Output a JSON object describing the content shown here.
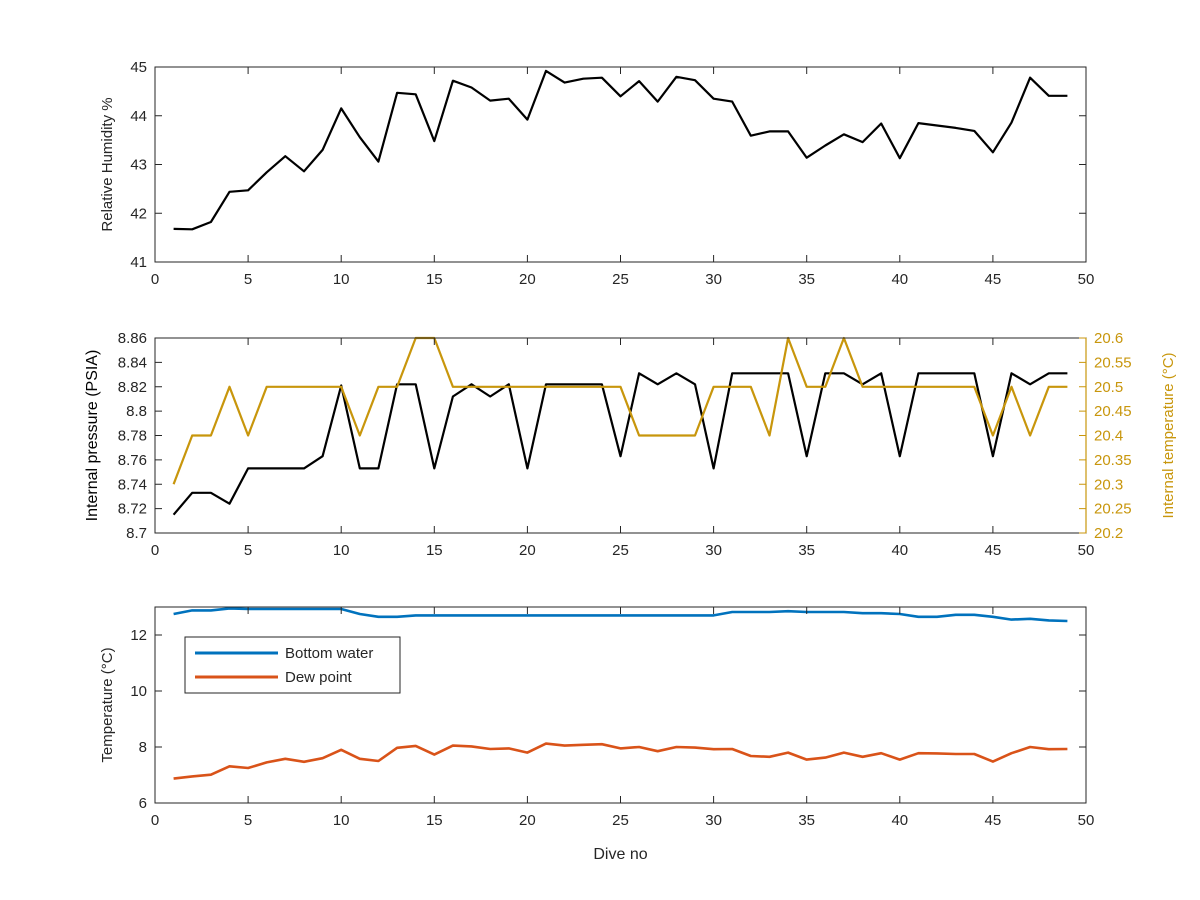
{
  "chart_data": [
    {
      "type": "line",
      "xlabel": "",
      "ylabel": "Relative Humidity %",
      "xlim": [
        0,
        50
      ],
      "ylim": [
        41,
        45
      ],
      "xticks": [
        0,
        5,
        10,
        15,
        20,
        25,
        30,
        35,
        40,
        45,
        50
      ],
      "yticks": [
        41,
        42,
        43,
        44,
        45
      ],
      "xtick_labels": [
        "0",
        "5",
        "10",
        "15",
        "20",
        "25",
        "30",
        "35",
        "40",
        "45",
        "50"
      ],
      "ytick_labels": [
        "41",
        "42",
        "43",
        "44",
        "45"
      ],
      "grid": false,
      "series": [
        {
          "color": "#000000",
          "x": [
            1,
            2,
            3,
            4,
            5,
            6,
            7,
            8,
            9,
            10,
            11,
            12,
            13,
            14,
            15,
            16,
            17,
            18,
            19,
            20,
            21,
            22,
            23,
            24,
            25,
            26,
            27,
            28,
            29,
            30,
            31,
            32,
            33,
            34,
            35,
            36,
            37,
            38,
            39,
            40,
            41,
            42,
            43,
            44,
            45,
            46,
            47,
            48,
            49
          ],
          "values": [
            41.68,
            41.67,
            41.82,
            42.44,
            42.47,
            42.84,
            43.17,
            42.86,
            43.3,
            44.15,
            43.56,
            43.06,
            44.47,
            44.44,
            43.48,
            44.72,
            44.58,
            44.31,
            44.35,
            43.92,
            44.92,
            44.68,
            44.76,
            44.78,
            44.4,
            44.71,
            44.29,
            44.8,
            44.73,
            44.35,
            44.29,
            43.59,
            43.68,
            43.68,
            43.14,
            43.39,
            43.62,
            43.46,
            43.84,
            43.13,
            43.85,
            43.8,
            43.75,
            43.69,
            43.25,
            43.86,
            44.78,
            44.41,
            44.41
          ]
        }
      ]
    },
    {
      "type": "line",
      "xlabel": "",
      "ylabel": "Internal pressure (PSIA)",
      "ylabel_right": "Internal temperature (°C)",
      "xlim": [
        0,
        50
      ],
      "ylim": [
        8.7,
        8.86
      ],
      "ylim_right": [
        20.2,
        20.6
      ],
      "xticks": [
        0,
        5,
        10,
        15,
        20,
        25,
        30,
        35,
        40,
        45,
        50
      ],
      "yticks": [
        8.7,
        8.72,
        8.74,
        8.76,
        8.78,
        8.8,
        8.82,
        8.84,
        8.86
      ],
      "yticks_right": [
        20.2,
        20.25,
        20.3,
        20.35,
        20.4,
        20.45,
        20.5,
        20.55,
        20.6
      ],
      "xtick_labels": [
        "0",
        "5",
        "10",
        "15",
        "20",
        "25",
        "30",
        "35",
        "40",
        "45",
        "50"
      ],
      "ytick_labels": [
        "8.7",
        "8.72",
        "8.74",
        "8.76",
        "8.78",
        "8.8",
        "8.82",
        "8.84",
        "8.86"
      ],
      "ytick_labels_right": [
        "20.2",
        "20.25",
        "20.3",
        "20.35",
        "20.4",
        "20.45",
        "20.5",
        "20.55",
        "20.6"
      ],
      "right_axis_color": "#c8960c",
      "grid": false,
      "series": [
        {
          "axis": "left",
          "color": "#000000",
          "x": [
            1,
            2,
            3,
            4,
            5,
            6,
            7,
            8,
            9,
            10,
            11,
            12,
            13,
            14,
            15,
            16,
            17,
            18,
            19,
            20,
            21,
            22,
            23,
            24,
            25,
            26,
            27,
            28,
            29,
            30,
            31,
            32,
            33,
            34,
            35,
            36,
            37,
            38,
            39,
            40,
            41,
            42,
            43,
            44,
            45,
            46,
            47,
            48,
            49
          ],
          "values": [
            8.715,
            8.733,
            8.733,
            8.724,
            8.753,
            8.753,
            8.753,
            8.753,
            8.763,
            8.821,
            8.753,
            8.753,
            8.822,
            8.822,
            8.753,
            8.812,
            8.822,
            8.812,
            8.822,
            8.753,
            8.822,
            8.822,
            8.822,
            8.822,
            8.763,
            8.831,
            8.822,
            8.831,
            8.822,
            8.753,
            8.831,
            8.831,
            8.831,
            8.831,
            8.763,
            8.831,
            8.831,
            8.822,
            8.831,
            8.763,
            8.831,
            8.831,
            8.831,
            8.831,
            8.763,
            8.831,
            8.822,
            8.831,
            8.831
          ]
        },
        {
          "axis": "right",
          "color": "#c8960c",
          "x": [
            1,
            2,
            3,
            4,
            5,
            6,
            7,
            8,
            9,
            10,
            11,
            12,
            13,
            14,
            15,
            16,
            17,
            18,
            19,
            20,
            21,
            22,
            23,
            24,
            25,
            26,
            27,
            28,
            29,
            30,
            31,
            32,
            33,
            34,
            35,
            36,
            37,
            38,
            39,
            40,
            41,
            42,
            43,
            44,
            45,
            46,
            47,
            48,
            49
          ],
          "values": [
            20.3,
            20.4,
            20.4,
            20.5,
            20.4,
            20.5,
            20.5,
            20.5,
            20.5,
            20.5,
            20.4,
            20.5,
            20.5,
            20.6,
            20.6,
            20.5,
            20.5,
            20.5,
            20.5,
            20.5,
            20.5,
            20.5,
            20.5,
            20.5,
            20.5,
            20.4,
            20.4,
            20.4,
            20.4,
            20.5,
            20.5,
            20.5,
            20.4,
            20.6,
            20.5,
            20.5,
            20.6,
            20.5,
            20.5,
            20.5,
            20.5,
            20.5,
            20.5,
            20.5,
            20.4,
            20.5,
            20.4,
            20.5,
            20.5
          ]
        }
      ]
    },
    {
      "type": "line",
      "xlabel": "Dive no",
      "ylabel": "Temperature (°C)",
      "xlim": [
        0,
        50
      ],
      "ylim": [
        6,
        13
      ],
      "xticks": [
        0,
        5,
        10,
        15,
        20,
        25,
        30,
        35,
        40,
        45,
        50
      ],
      "yticks": [
        6,
        8,
        10,
        12
      ],
      "xtick_labels": [
        "0",
        "5",
        "10",
        "15",
        "20",
        "25",
        "30",
        "35",
        "40",
        "45",
        "50"
      ],
      "ytick_labels": [
        "6",
        "8",
        "10",
        "12"
      ],
      "grid": false,
      "legend": "top-left",
      "series": [
        {
          "name": "Bottom water",
          "color": "#0072bd",
          "x": [
            1,
            2,
            3,
            4,
            5,
            6,
            7,
            8,
            9,
            10,
            11,
            12,
            13,
            14,
            15,
            16,
            17,
            18,
            19,
            20,
            21,
            22,
            23,
            24,
            25,
            26,
            27,
            28,
            29,
            30,
            31,
            32,
            33,
            34,
            35,
            36,
            37,
            38,
            39,
            40,
            41,
            42,
            43,
            44,
            45,
            46,
            47,
            48,
            49
          ],
          "values": [
            12.75,
            12.88,
            12.88,
            12.95,
            12.93,
            12.93,
            12.93,
            12.93,
            12.93,
            12.93,
            12.75,
            12.65,
            12.65,
            12.7,
            12.7,
            12.7,
            12.7,
            12.7,
            12.7,
            12.7,
            12.7,
            12.7,
            12.7,
            12.7,
            12.7,
            12.7,
            12.7,
            12.7,
            12.7,
            12.7,
            12.82,
            12.82,
            12.82,
            12.85,
            12.82,
            12.82,
            12.82,
            12.78,
            12.78,
            12.75,
            12.65,
            12.65,
            12.72,
            12.72,
            12.65,
            12.55,
            12.58,
            12.52,
            12.5
          ]
        },
        {
          "name": "Dew point",
          "color": "#d95319",
          "x": [
            1,
            2,
            3,
            4,
            5,
            6,
            7,
            8,
            9,
            10,
            11,
            12,
            13,
            14,
            15,
            16,
            17,
            18,
            19,
            20,
            21,
            22,
            23,
            24,
            25,
            26,
            27,
            28,
            29,
            30,
            31,
            32,
            33,
            34,
            35,
            36,
            37,
            38,
            39,
            40,
            41,
            42,
            43,
            44,
            45,
            46,
            47,
            48,
            49
          ],
          "values": [
            6.87,
            6.95,
            7.01,
            7.31,
            7.25,
            7.45,
            7.58,
            7.47,
            7.6,
            7.9,
            7.58,
            7.5,
            7.97,
            8.04,
            7.73,
            8.05,
            8.02,
            7.93,
            7.95,
            7.8,
            8.12,
            8.05,
            8.08,
            8.1,
            7.95,
            8.0,
            7.85,
            8.0,
            7.98,
            7.92,
            7.93,
            7.68,
            7.65,
            7.8,
            7.55,
            7.62,
            7.8,
            7.65,
            7.78,
            7.55,
            7.78,
            7.77,
            7.75,
            7.75,
            7.48,
            7.78,
            8.0,
            7.92,
            7.93
          ]
        }
      ]
    }
  ]
}
